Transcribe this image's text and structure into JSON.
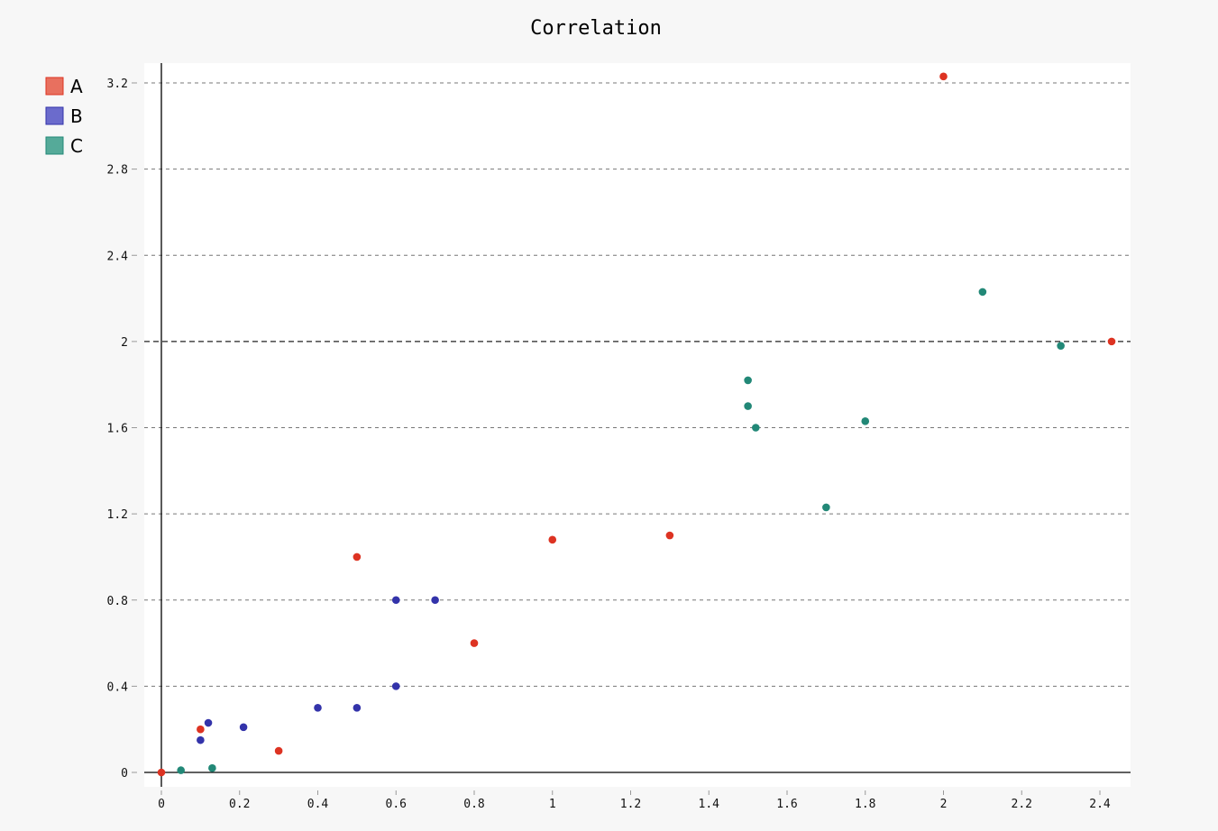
{
  "chart_data": {
    "type": "scatter",
    "title": "Correlation",
    "xlabel": "",
    "ylabel": "",
    "xlim": [
      -0.04,
      2.47
    ],
    "ylim": [
      -0.07,
      3.29
    ],
    "x_ticks": [
      0,
      0.2,
      0.4,
      0.6,
      0.8,
      1,
      1.2,
      1.4,
      1.6,
      1.8,
      2,
      2.2,
      2.4
    ],
    "x_tick_labels": [
      "0",
      "0.2",
      "0.4",
      "0.6",
      "0.8",
      "1",
      "1.2",
      "1.4",
      "1.6",
      "1.8",
      "2",
      "2.2",
      "2.4"
    ],
    "y_ticks": [
      0,
      0.4,
      0.8,
      1.2,
      1.6,
      2,
      2.4,
      2.8,
      3.2
    ],
    "y_tick_labels": [
      "0",
      "0.4",
      "0.8",
      "1.2",
      "1.6",
      "2",
      "2.4",
      "2.8",
      "3.2"
    ],
    "major_y": 2,
    "grid": true,
    "legend_position": "top-left",
    "series": [
      {
        "name": "A",
        "color": "#dd3322",
        "legend_color": "#e8705f",
        "points": [
          [
            0,
            0
          ],
          [
            0.1,
            0.2
          ],
          [
            0.3,
            0.1
          ],
          [
            0.5,
            1.0
          ],
          [
            0.8,
            0.6
          ],
          [
            1.0,
            1.08
          ],
          [
            1.3,
            1.1
          ],
          [
            2.0,
            3.23
          ],
          [
            2.43,
            2.0
          ]
        ]
      },
      {
        "name": "B",
        "color": "#3333aa",
        "legend_color": "#6b6bcc",
        "points": [
          [
            0.1,
            0.15
          ],
          [
            0.12,
            0.23
          ],
          [
            0.21,
            0.21
          ],
          [
            0.4,
            0.3
          ],
          [
            0.5,
            0.3
          ],
          [
            0.6,
            0.8
          ],
          [
            0.7,
            0.8
          ],
          [
            0.6,
            0.4
          ]
        ]
      },
      {
        "name": "C",
        "color": "#228877",
        "legend_color": "#55aa99",
        "points": [
          [
            0.05,
            0.01
          ],
          [
            0.13,
            0.02
          ],
          [
            1.5,
            1.82
          ],
          [
            1.5,
            1.7
          ],
          [
            1.52,
            1.6
          ],
          [
            1.8,
            1.63
          ],
          [
            1.7,
            1.23
          ],
          [
            2.1,
            2.23
          ],
          [
            2.3,
            1.98
          ]
        ]
      }
    ]
  }
}
